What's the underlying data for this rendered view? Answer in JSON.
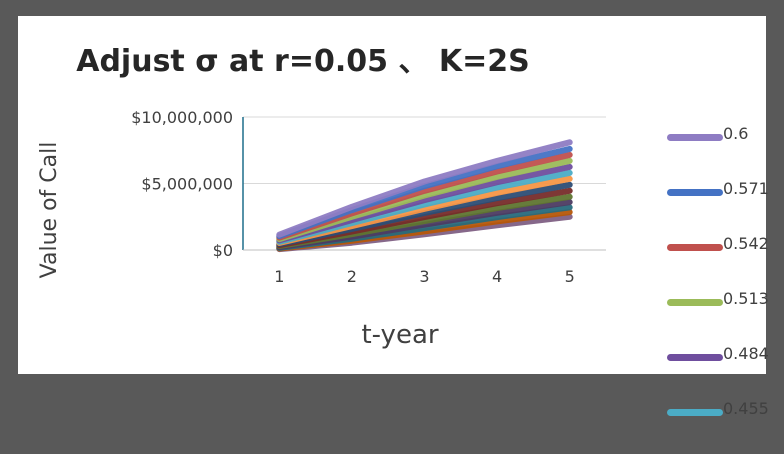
{
  "chart_data": {
    "type": "line",
    "title": "Adjust σ at r=0.05 、 K=2S",
    "xlabel": "t-year",
    "ylabel": "Value of Call",
    "x": [
      1,
      2,
      3,
      4,
      5
    ],
    "ytick_labels": [
      "$0",
      "$5,000,000",
      "$10,000,000"
    ],
    "yticks": [
      0,
      5000000,
      10000000
    ],
    "ylim": [
      0,
      10000000
    ],
    "grid": true,
    "legend_position": "right",
    "series": [
      {
        "name": "0.6",
        "color": "#8e7cc3",
        "values": [
          1150000,
          3250000,
          5150000,
          6700000,
          8100000
        ]
      },
      {
        "name": "0.571",
        "color": "#4472c4",
        "values": [
          1040000,
          3000000,
          4800000,
          6300000,
          7600000
        ]
      },
      {
        "name": "0.542",
        "color": "#c0504d",
        "values": [
          930000,
          2750000,
          4450000,
          5900000,
          7150000
        ]
      },
      {
        "name": "0.513",
        "color": "#9bbb59",
        "values": [
          820000,
          2500000,
          4100000,
          5500000,
          6700000
        ]
      },
      {
        "name": "0.484",
        "color": "#6f4e9e",
        "values": [
          720000,
          2250000,
          3750000,
          5100000,
          6250000
        ]
      },
      {
        "name": "0.455",
        "color": "#4bacc6",
        "values": [
          620000,
          2020000,
          3420000,
          4700000,
          5800000
        ]
      },
      {
        "color": "#f79646",
        "values": [
          530000,
          1800000,
          3100000,
          4300000,
          5350000
        ]
      },
      {
        "color": "#2c4d75",
        "values": [
          440000,
          1580000,
          2780000,
          3900000,
          4900000
        ]
      },
      {
        "color": "#772c2a",
        "values": [
          360000,
          1380000,
          2470000,
          3520000,
          4450000
        ]
      },
      {
        "color": "#5f7530",
        "values": [
          290000,
          1190000,
          2180000,
          3150000,
          4000000
        ]
      },
      {
        "color": "#4d3b62",
        "values": [
          220000,
          1010000,
          1900000,
          2800000,
          3600000
        ]
      },
      {
        "color": "#276a7c",
        "values": [
          160000,
          840000,
          1640000,
          2470000,
          3200000
        ]
      },
      {
        "color": "#b65708",
        "values": [
          110000,
          690000,
          1400000,
          2150000,
          2850000
        ]
      },
      {
        "color": "#7f6084",
        "values": [
          70000,
          550000,
          1180000,
          1860000,
          2500000
        ]
      }
    ]
  }
}
